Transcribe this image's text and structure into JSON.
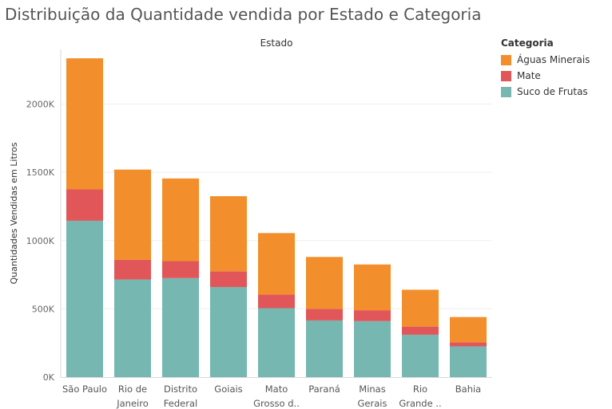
{
  "title": "Distribuição da Quantidade vendida por Estado e Categoria",
  "colors": {
    "aguas": "#f28e2b",
    "mate": "#e15759",
    "suco": "#76b7b2"
  },
  "legend": {
    "title": "Categoria",
    "items": [
      "Águas Minerais",
      "Mate",
      "Suco de Frutas"
    ]
  },
  "chart_data": {
    "type": "bar",
    "stacked": true,
    "column_header": "Estado",
    "ylabel": "Quantidades Vendidas em Litros",
    "ylim": [
      0,
      2400000
    ],
    "y_ticks": [
      0,
      500000,
      1000000,
      1500000,
      2000000
    ],
    "y_tick_labels": [
      "0K",
      "500K",
      "1000K",
      "1500K",
      "2000K"
    ],
    "grid": true,
    "legend_position": "right",
    "categories": [
      [
        "São Paulo"
      ],
      [
        "Rio de",
        "Janeiro"
      ],
      [
        "Distrito",
        "Federal"
      ],
      [
        "Goiais"
      ],
      [
        "Mato",
        "Grosso d.."
      ],
      [
        "Paraná"
      ],
      [
        "Minas",
        "Gerais"
      ],
      [
        "Rio",
        "Grande .."
      ],
      [
        "Bahia"
      ]
    ],
    "series": [
      {
        "name": "Suco de Frutas",
        "color": "#76b7b2",
        "values": [
          1145000,
          715000,
          725000,
          660000,
          505000,
          415000,
          410000,
          310000,
          225000
        ]
      },
      {
        "name": "Mate",
        "color": "#e15759",
        "values": [
          230000,
          145000,
          125000,
          115000,
          100000,
          85000,
          80000,
          60000,
          30000
        ]
      },
      {
        "name": "Águas Minerais",
        "color": "#f28e2b",
        "values": [
          960000,
          660000,
          605000,
          550000,
          450000,
          380000,
          335000,
          270000,
          185000
        ]
      }
    ]
  }
}
